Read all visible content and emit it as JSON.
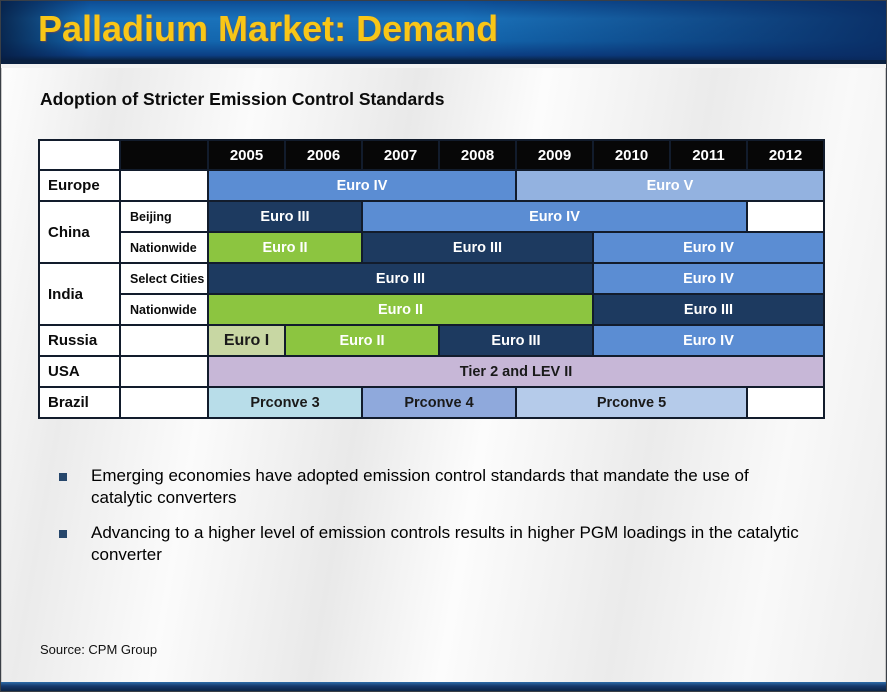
{
  "banner": {
    "title": "Palladium Market: Demand"
  },
  "subtitle": "Adoption of Stricter Emission Control Standards",
  "palette": {
    "mblue": {
      "bg": "#5b8dd3",
      "fg": "#ffffff"
    },
    "lblue": {
      "bg": "#93b2e0",
      "fg": "#ffffff"
    },
    "navy": {
      "bg": "#1d3a60",
      "fg": "#ffffff"
    },
    "green": {
      "bg": "#8cc540",
      "fg": "#ffffff"
    },
    "sage": {
      "bg": "#c8d7a3",
      "fg": "#1a1a1a"
    },
    "lav": {
      "bg": "#c7b7d7",
      "fg": "#1a1a1a"
    },
    "cyan": {
      "bg": "#b8dde9",
      "fg": "#1a1a1a"
    },
    "peri": {
      "bg": "#8fa9dc",
      "fg": "#1a1a1a"
    },
    "pblue": {
      "bg": "#b5cbea",
      "fg": "#1a1a1a"
    },
    "white": {
      "bg": "#ffffff",
      "fg": "#1a1a1a"
    },
    "banner_blue": "#1366ae",
    "title_gold": "#f8c617",
    "bottom_bar_navy": "#16396b",
    "bullet_marker": "#26466b"
  },
  "table": {
    "years": [
      "2005",
      "2006",
      "2007",
      "2008",
      "2009",
      "2010",
      "2011",
      "2012"
    ],
    "rows": [
      {
        "country": "Europe",
        "rowspan": 1,
        "region": "",
        "bars": [
          {
            "label": "Euro IV",
            "span": 4,
            "color": "mblue"
          },
          {
            "label": "Euro V",
            "span": 4,
            "color": "lblue"
          }
        ]
      },
      {
        "country": "China",
        "rowspan": 2,
        "region": "Beijing",
        "bars": [
          {
            "label": "Euro III",
            "span": 2,
            "color": "navy"
          },
          {
            "label": "Euro IV",
            "span": 5,
            "color": "mblue"
          },
          {
            "label": "",
            "span": 1,
            "color": "white"
          }
        ]
      },
      {
        "region": "Nationwide",
        "bars": [
          {
            "label": "Euro II",
            "span": 2,
            "color": "green"
          },
          {
            "label": "Euro III",
            "span": 3,
            "color": "navy"
          },
          {
            "label": "Euro IV",
            "span": 3,
            "color": "mblue"
          }
        ]
      },
      {
        "country": "India",
        "rowspan": 2,
        "region": "Select Cities",
        "bars": [
          {
            "label": "Euro III",
            "span": 5,
            "color": "navy"
          },
          {
            "label": "Euro IV",
            "span": 3,
            "color": "mblue"
          }
        ]
      },
      {
        "region": "Nationwide",
        "bars": [
          {
            "label": "Euro II",
            "span": 5,
            "color": "green"
          },
          {
            "label": "Euro III",
            "span": 3,
            "color": "navy"
          }
        ]
      },
      {
        "country": "Russia",
        "rowspan": 1,
        "region": "",
        "bars": [
          {
            "label": "Euro I",
            "span": 1,
            "color": "sage",
            "fs": 16
          },
          {
            "label": "Euro II",
            "span": 2,
            "color": "green"
          },
          {
            "label": "Euro III",
            "span": 2,
            "color": "navy"
          },
          {
            "label": "Euro IV",
            "span": 3,
            "color": "mblue"
          }
        ]
      },
      {
        "country": "USA",
        "rowspan": 1,
        "region": "",
        "bars": [
          {
            "label": "Tier 2 and LEV II",
            "span": 8,
            "color": "lav"
          }
        ]
      },
      {
        "country": "Brazil",
        "rowspan": 1,
        "region": "",
        "bars": [
          {
            "label": "Prconve 3",
            "span": 2,
            "color": "cyan"
          },
          {
            "label": "Prconve 4",
            "span": 2,
            "color": "peri"
          },
          {
            "label": "Prconve 5",
            "span": 3,
            "color": "pblue"
          },
          {
            "label": "",
            "span": 1,
            "color": "white"
          }
        ]
      }
    ]
  },
  "bullets": [
    {
      "text": "Emerging economies have adopted emission control standards that mandate the use of catalytic converters"
    },
    {
      "text": "Advancing to a higher level of emission controls results in higher PGM loadings in the catalytic converter"
    }
  ],
  "source": "Source: CPM Group"
}
